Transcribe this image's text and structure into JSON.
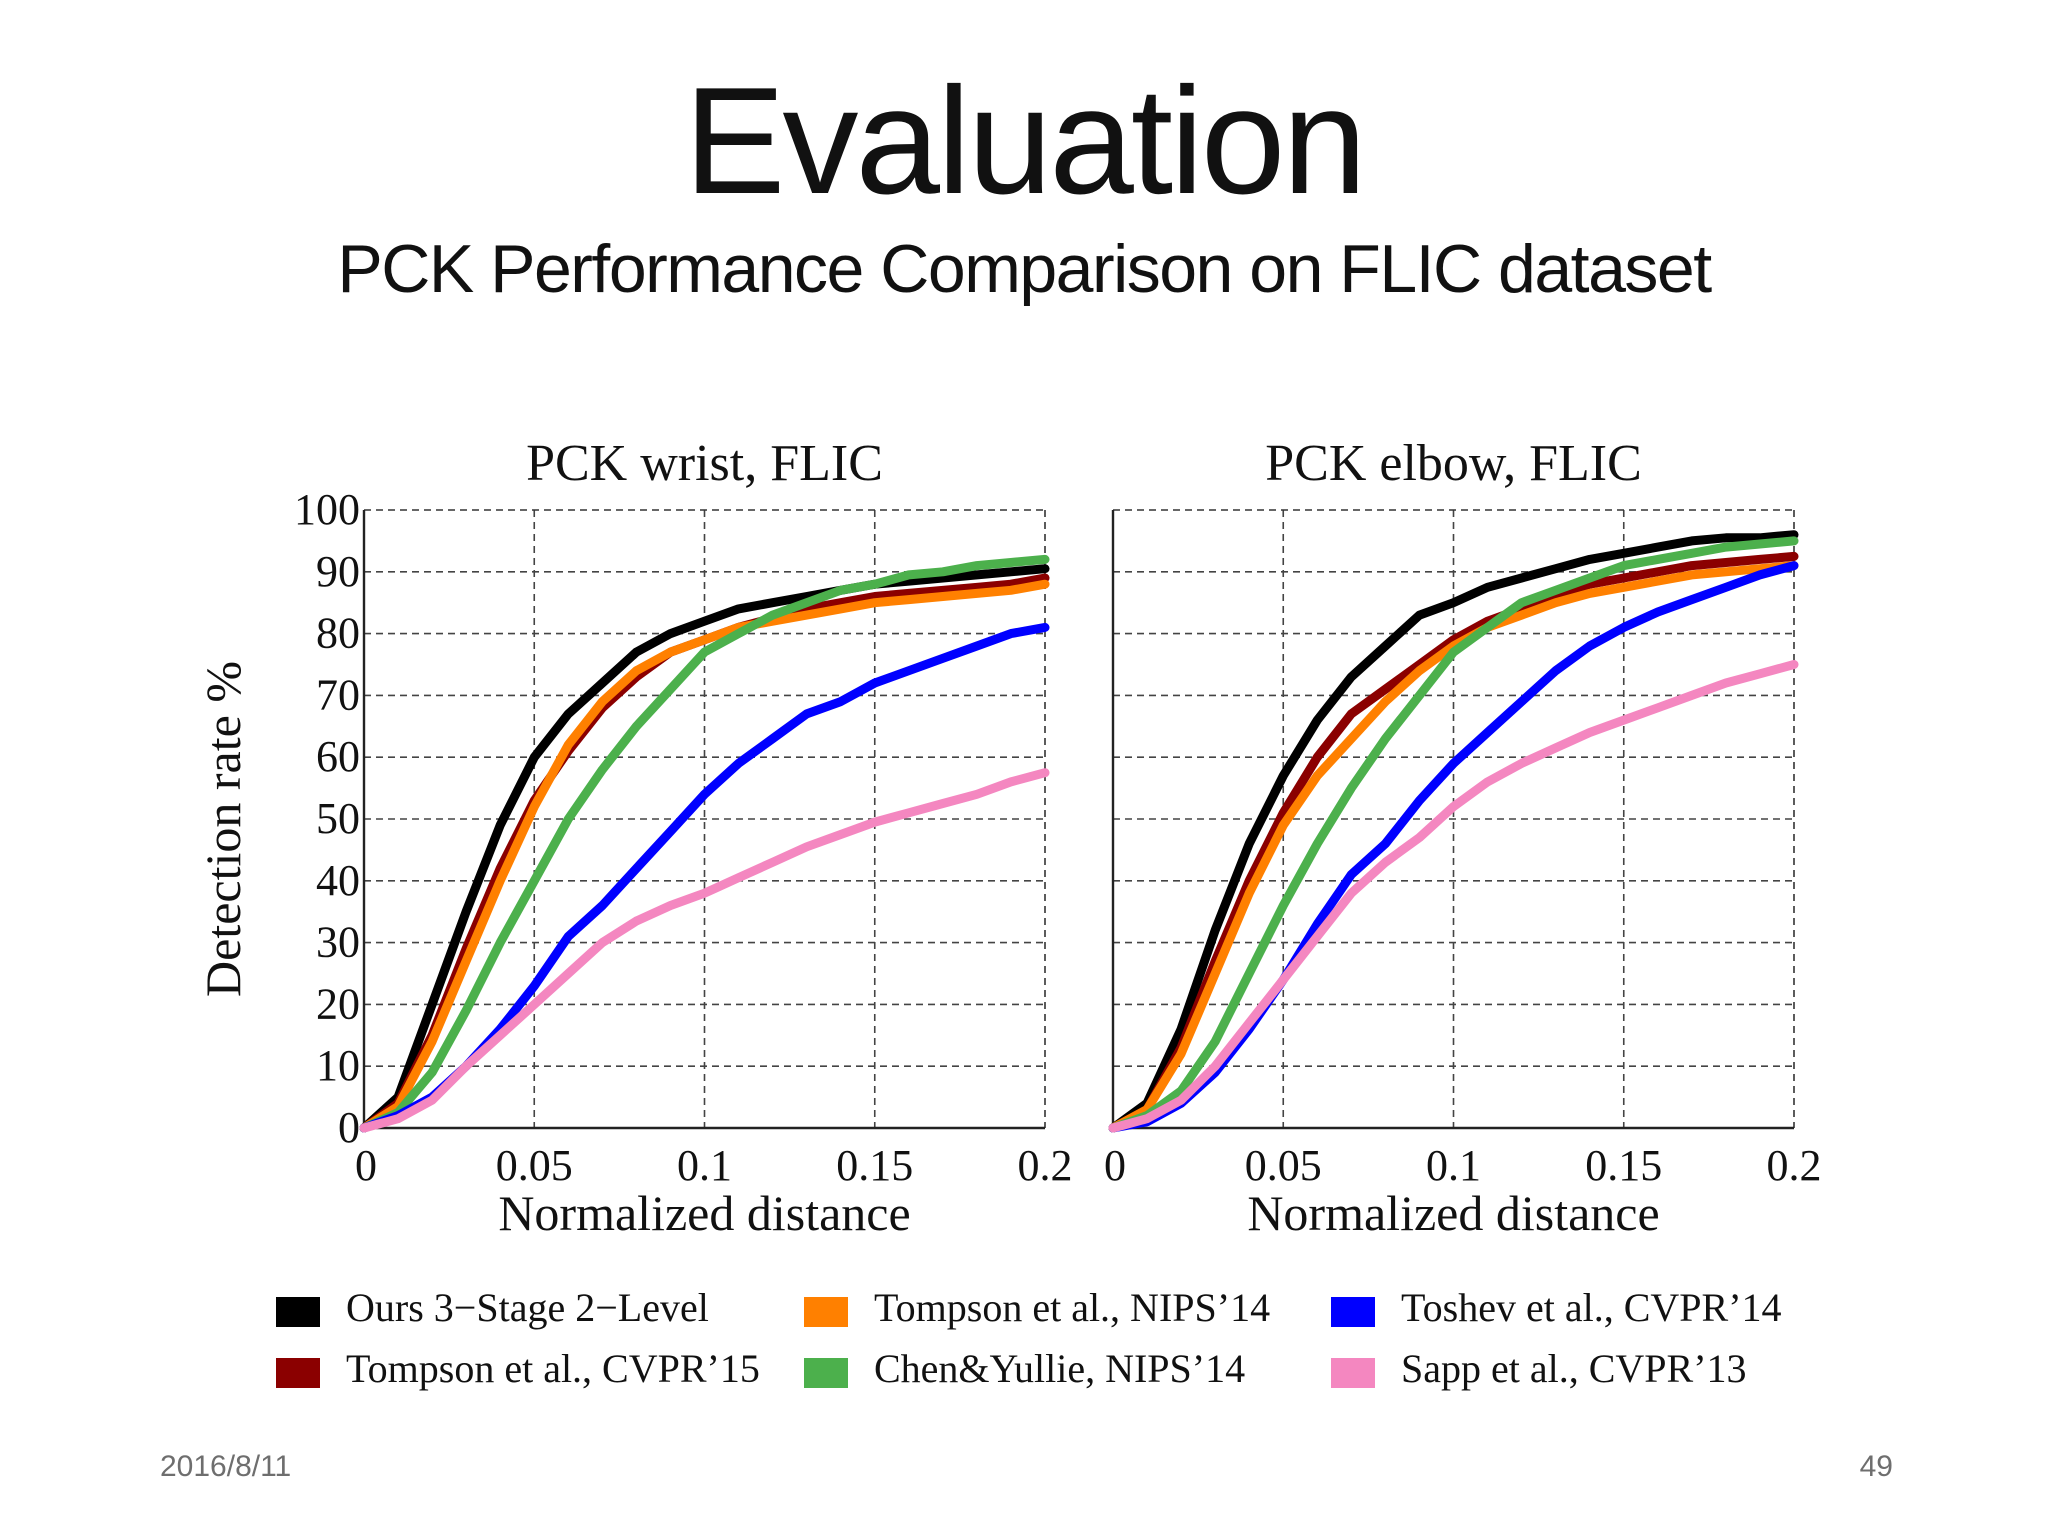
{
  "slide": {
    "title": "Evaluation",
    "subtitle": "PCK Performance Comparison on FLIC dataset",
    "date": "2016/8/11",
    "page_number": "49"
  },
  "colors": {
    "Ours 3−Stage 2−Level": "#000000",
    "Tompson et al., CVPR’15": "#8b0000",
    "Tompson et al., NIPS’14": "#ff8000",
    "Chen&Yullie, NIPS’14": "#4cb04c",
    "Toshev et al., CVPR’14": "#0000ff",
    "Sapp et al., CVPR’13": "#f487c0"
  },
  "legend": [
    "Ours 3−Stage 2−Level",
    "Tompson et al., CVPR’15",
    "Tompson et al., NIPS’14",
    "Chen&Yullie, NIPS’14",
    "Toshev et al., CVPR’14",
    "Sapp et al., CVPR’13"
  ],
  "chart_data": [
    {
      "type": "line",
      "title": "PCK wrist, FLIC",
      "xlabel": "Normalized distance",
      "ylabel": "Detection rate %",
      "xlim": [
        0,
        0.2
      ],
      "ylim": [
        0,
        100
      ],
      "xticks": [
        "0",
        "0.05",
        "0.1",
        "0.15",
        "0.2"
      ],
      "yticks": [
        "0",
        "10",
        "20",
        "30",
        "40",
        "50",
        "60",
        "70",
        "80",
        "90",
        "100"
      ],
      "grid": true,
      "x": [
        0,
        0.01,
        0.02,
        0.03,
        0.04,
        0.05,
        0.06,
        0.07,
        0.08,
        0.09,
        0.1,
        0.11,
        0.12,
        0.13,
        0.14,
        0.15,
        0.16,
        0.17,
        0.18,
        0.19,
        0.2
      ],
      "series": [
        {
          "name": "Ours 3−Stage 2−Level",
          "values": [
            0,
            5,
            20,
            35,
            49,
            60,
            67,
            72,
            77,
            80,
            82,
            84,
            85,
            86,
            87,
            88,
            88.5,
            89,
            89.5,
            90,
            90.5
          ]
        },
        {
          "name": "Tompson et al., CVPR’15",
          "values": [
            0,
            4,
            15,
            29,
            42,
            53,
            61,
            68,
            73,
            77,
            79,
            81,
            82.5,
            84,
            85,
            86,
            86.5,
            87,
            87.5,
            88,
            89
          ]
        },
        {
          "name": "Tompson et al., NIPS’14",
          "values": [
            0,
            3.5,
            14,
            27,
            40,
            52,
            62,
            69,
            74,
            77,
            79,
            81,
            82,
            83,
            84,
            85,
            85.5,
            86,
            86.5,
            87,
            88
          ]
        },
        {
          "name": "Chen&Yullie, NIPS’14",
          "values": [
            0,
            2.5,
            9,
            19,
            30,
            40,
            50,
            58,
            65,
            71,
            77,
            80,
            83,
            85,
            87,
            88,
            89.5,
            90,
            91,
            91.5,
            92
          ]
        },
        {
          "name": "Toshev et al., CVPR’14",
          "values": [
            0,
            2,
            5,
            10,
            16,
            23,
            31,
            36,
            42,
            48,
            54,
            59,
            63,
            67,
            69,
            72,
            74,
            76,
            78,
            80,
            81
          ]
        },
        {
          "name": "Sapp et al., CVPR’13",
          "values": [
            0,
            1.5,
            4.5,
            10,
            15,
            20,
            25,
            30,
            33.5,
            36,
            38,
            40.5,
            43,
            45.5,
            47.5,
            49.5,
            51,
            52.5,
            54,
            56,
            57.5
          ]
        }
      ]
    },
    {
      "type": "line",
      "title": "PCK elbow, FLIC",
      "xlabel": "Normalized distance",
      "ylabel": "",
      "xlim": [
        0,
        0.2
      ],
      "ylim": [
        0,
        100
      ],
      "xticks": [
        "0",
        "0.05",
        "0.1",
        "0.15",
        "0.2"
      ],
      "yticks": [],
      "grid": true,
      "x": [
        0,
        0.01,
        0.02,
        0.03,
        0.04,
        0.05,
        0.06,
        0.07,
        0.08,
        0.09,
        0.1,
        0.11,
        0.12,
        0.13,
        0.14,
        0.15,
        0.16,
        0.17,
        0.18,
        0.19,
        0.2
      ],
      "series": [
        {
          "name": "Ours 3−Stage 2−Level",
          "values": [
            0,
            4,
            16,
            32,
            46,
            57,
            66,
            73,
            78,
            83,
            85,
            87.5,
            89,
            90.5,
            92,
            93,
            94,
            95,
            95.5,
            95.5,
            96
          ]
        },
        {
          "name": "Tompson et al., CVPR’15",
          "values": [
            0,
            3,
            13,
            27,
            40,
            51,
            60,
            67,
            71,
            75,
            79,
            82,
            84,
            86,
            88,
            89,
            90,
            91,
            91.5,
            92,
            92.5
          ]
        },
        {
          "name": "Tompson et al., NIPS’14",
          "values": [
            0,
            3,
            12,
            25,
            38,
            49,
            57,
            63,
            69,
            74,
            78,
            81,
            83,
            85,
            86.5,
            87.5,
            88.5,
            89.5,
            90,
            90.5,
            91
          ]
        },
        {
          "name": "Chen&Yullie, NIPS’14",
          "values": [
            0,
            2,
            6,
            14,
            25,
            36,
            46,
            55,
            63,
            70,
            77,
            81,
            85,
            87,
            89,
            91,
            92,
            93,
            94,
            94.5,
            95
          ]
        },
        {
          "name": "Toshev et al., CVPR’14",
          "values": [
            0,
            1,
            4,
            9,
            16,
            24,
            33,
            41,
            46,
            53,
            59,
            64,
            69,
            74,
            78,
            81,
            83.5,
            85.5,
            87.5,
            89.5,
            91
          ]
        },
        {
          "name": "Sapp et al., CVPR’13",
          "values": [
            0,
            1.5,
            4.5,
            10,
            17,
            24,
            31,
            38,
            43,
            47,
            52,
            56,
            59,
            61.5,
            64,
            66,
            68,
            70,
            72,
            73.5,
            75
          ]
        }
      ]
    }
  ]
}
